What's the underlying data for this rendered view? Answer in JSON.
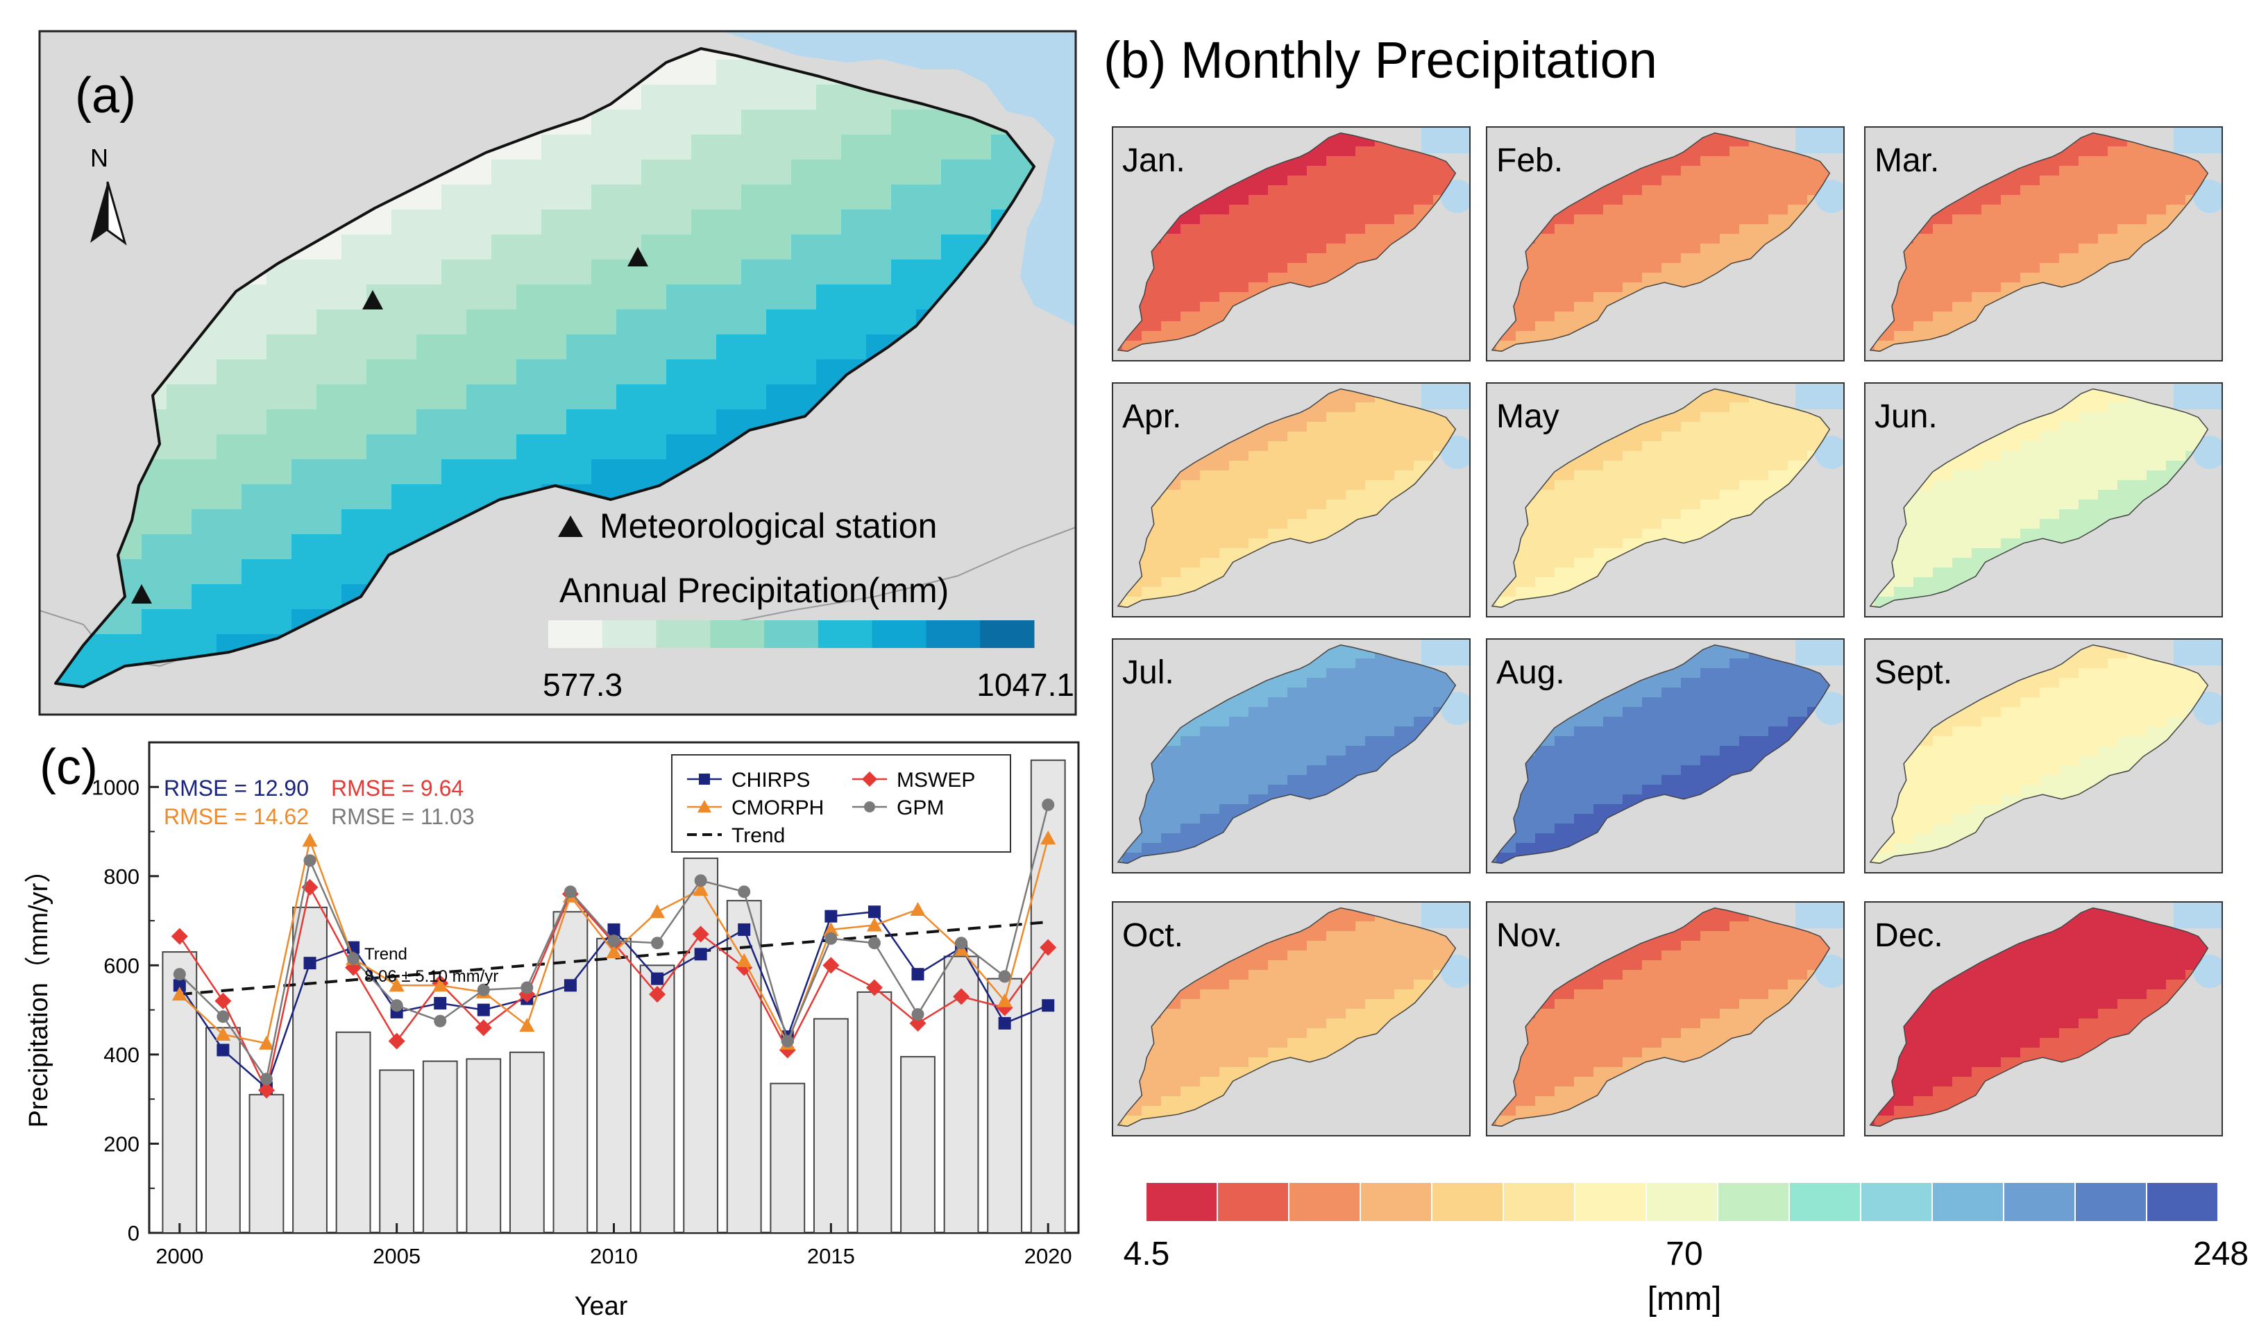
{
  "panel_a": {
    "label": "(a)",
    "north_label": "N",
    "legend_station": "Meteorological station",
    "legend_title": "Annual Precipitation(mm)",
    "scale_min": "577.3",
    "scale_max": "1047.1",
    "colors": {
      "land": "#dadada",
      "sea": "#b5d8ee",
      "outline": "#111111",
      "ramp": [
        "#f2f5ef",
        "#d8ede0",
        "#b9e3cc",
        "#9cdcc3",
        "#6fd0cb",
        "#22bcd8",
        "#10a6d4",
        "#0b8ac2",
        "#0a6ea4"
      ]
    },
    "stations": [
      "station-1",
      "station-2",
      "station-3"
    ]
  },
  "panel_b": {
    "title": "(b) Monthly Precipitation",
    "months": [
      "Jan.",
      "Feb.",
      "Mar.",
      "Apr.",
      "May",
      "Jun.",
      "Jul.",
      "Aug.",
      "Sept.",
      "Oct.",
      "Nov.",
      "Dec."
    ],
    "month_levels": [
      1,
      2,
      2,
      4,
      5,
      7,
      12,
      13,
      6,
      3,
      2,
      0
    ],
    "colorbar_ticks": [
      "4.5",
      "70",
      "248"
    ],
    "colorbar_unit": "[mm]",
    "colorbar_colors": [
      "#d63048",
      "#e8604f",
      "#f28f63",
      "#f8b77a",
      "#fbd48a",
      "#fce6a0",
      "#fdf4b6",
      "#f2f7c6",
      "#c5efc3",
      "#93e6d2",
      "#8ed5e0",
      "#7ab9dc",
      "#6e9fd2",
      "#5a82c4",
      "#4a62b5"
    ]
  },
  "panel_c": {
    "label": "(c)",
    "xlabel": "Year",
    "ylabel": "Precipitation（mm/yr）",
    "trend_label": "Trend",
    "trend_value": "8.06 ± 5.10 mm/yr",
    "rmse": [
      {
        "text": "RMSE = 12.90",
        "color": "#1a237e"
      },
      {
        "text": "RMSE = 9.64",
        "color": "#e53935"
      },
      {
        "text": "RMSE = 14.62",
        "color": "#ef8a2b"
      },
      {
        "text": "RMSE = 11.03",
        "color": "#7a7a7a"
      }
    ],
    "legend": [
      {
        "name": "CHIRPS",
        "color": "#1a237e",
        "marker": "square"
      },
      {
        "name": "MSWEP",
        "color": "#e53935",
        "marker": "diamond"
      },
      {
        "name": "CMORPH",
        "color": "#ef8a2b",
        "marker": "triangle"
      },
      {
        "name": "GPM",
        "color": "#7a7a7a",
        "marker": "circle"
      },
      {
        "name": "Trend",
        "color": "#111111",
        "marker": "dash"
      }
    ]
  },
  "chart_data": {
    "type": "bar",
    "x": [
      2000,
      2001,
      2002,
      2003,
      2004,
      2005,
      2006,
      2007,
      2008,
      2009,
      2010,
      2011,
      2012,
      2013,
      2014,
      2015,
      2016,
      2017,
      2018,
      2019,
      2020
    ],
    "xticks": [
      "2000",
      "2005",
      "2010",
      "2015",
      "2020"
    ],
    "yticks": [
      "0",
      "200",
      "400",
      "600",
      "800",
      "1000"
    ],
    "xlim": [
      1999.3,
      2020.7
    ],
    "ylim": [
      0,
      1100
    ],
    "bar_values": [
      630,
      460,
      310,
      730,
      450,
      365,
      385,
      390,
      405,
      720,
      660,
      600,
      840,
      745,
      335,
      480,
      540,
      395,
      620,
      570,
      1060
    ],
    "series": [
      {
        "name": "CHIRPS",
        "values": [
          555,
          410,
          325,
          605,
          640,
          495,
          515,
          500,
          525,
          555,
          680,
          570,
          625,
          680,
          440,
          710,
          720,
          580,
          640,
          470,
          510
        ]
      },
      {
        "name": "MSWEP",
        "values": [
          665,
          520,
          320,
          775,
          595,
          430,
          560,
          460,
          535,
          760,
          650,
          535,
          670,
          595,
          410,
          600,
          550,
          470,
          530,
          505,
          640
        ]
      },
      {
        "name": "CMORPH",
        "values": [
          535,
          445,
          425,
          880,
          615,
          555,
          555,
          540,
          465,
          755,
          630,
          720,
          770,
          610,
          425,
          680,
          690,
          725,
          635,
          520,
          885
        ]
      },
      {
        "name": "GPM",
        "values": [
          580,
          485,
          345,
          835,
          615,
          510,
          475,
          545,
          550,
          765,
          655,
          650,
          790,
          765,
          430,
          660,
          650,
          490,
          650,
          575,
          960
        ]
      }
    ],
    "trend": {
      "start": 535,
      "end": 697
    }
  }
}
